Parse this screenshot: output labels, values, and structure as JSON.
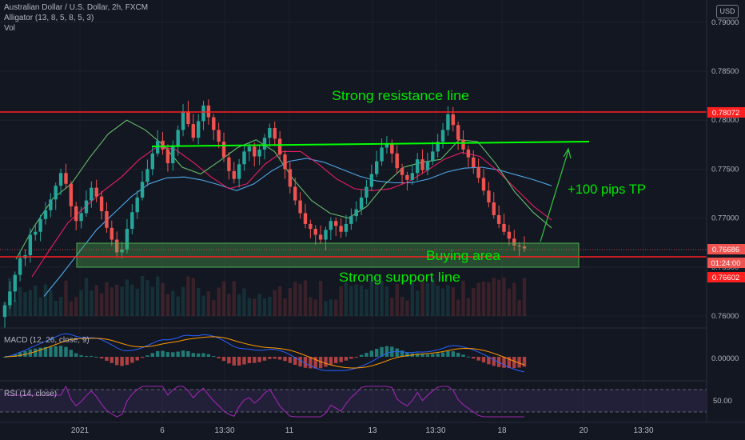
{
  "header": {
    "symbol_line": "Australian Dollar / U.S. Dollar, 2h, FXCM",
    "indicator_alligator": "Alligator (13, 8, 5, 8, 5, 3)",
    "indicator_vol": "Vol",
    "currency_button": "USD"
  },
  "colors": {
    "background": "#131722",
    "up_candle": "#26a69a",
    "down_candle": "#ef5350",
    "resistance_line": "#ff1f1f",
    "trend_line": "#00ff00",
    "annotation_text": "#00e600",
    "buy_zone_fill": "rgba(76,175,80,0.35)",
    "jaw": "#4ea7e8",
    "teeth": "#e91e63",
    "lips": "#66bb6a",
    "macd_line": "#2962ff",
    "signal_line": "#ff9800",
    "rsi_line": "#9c27b0"
  },
  "annotations": {
    "resistance_label": "Strong resistance line",
    "support_label": "Strong support line",
    "buy_zone_label": "Buying area",
    "target_label": "+100 pips TP"
  },
  "price_badges": [
    {
      "text": "0.78072",
      "color": "#ff1f1f"
    },
    {
      "text": "0.76686",
      "color": "#ef5350"
    },
    {
      "text": "01:24:00",
      "color": "#ef5350"
    },
    {
      "text": "0.76602",
      "color": "#ff1f1f"
    }
  ],
  "panes": {
    "macd_label": "MACD (12, 26, close, 9)",
    "macd_tick": "0.00000",
    "rsi_label": "RSI (14, close)",
    "rsi_tick": "50.00"
  },
  "chart_data": {
    "type": "candlestick",
    "title": "Australian Dollar / U.S. Dollar, 2h, FXCM",
    "y_ticks": [
      "0.79000",
      "0.78500",
      "0.78000",
      "0.77500",
      "0.77000",
      "0.76500",
      "0.76000"
    ],
    "ylim": [
      0.7585,
      0.7905
    ],
    "x_ticks": [
      "2021",
      "6",
      "13:30",
      "11",
      "13",
      "13:30",
      "18",
      "20",
      "13:30"
    ],
    "key_levels": {
      "resistance": 0.78072,
      "support": 0.76602,
      "last_price": 0.76686,
      "trendline": 0.7775
    },
    "close": [
      0.7611,
      0.7625,
      0.7642,
      0.7659,
      0.7662,
      0.7683,
      0.7686,
      0.7699,
      0.7708,
      0.7719,
      0.7733,
      0.7746,
      0.7735,
      0.7712,
      0.7697,
      0.7705,
      0.7718,
      0.7731,
      0.7722,
      0.7707,
      0.769,
      0.7678,
      0.7665,
      0.7668,
      0.7689,
      0.7706,
      0.7721,
      0.7737,
      0.775,
      0.7766,
      0.7779,
      0.777,
      0.7756,
      0.7773,
      0.779,
      0.7809,
      0.7796,
      0.7782,
      0.7799,
      0.7815,
      0.7803,
      0.779,
      0.7778,
      0.7762,
      0.7748,
      0.774,
      0.7755,
      0.7768,
      0.7773,
      0.7763,
      0.777,
      0.7782,
      0.7792,
      0.7781,
      0.7765,
      0.775,
      0.7732,
      0.7718,
      0.7705,
      0.7694,
      0.7689,
      0.7683,
      0.7678,
      0.7688,
      0.7697,
      0.7692,
      0.7686,
      0.7694,
      0.7702,
      0.7709,
      0.7721,
      0.7732,
      0.7745,
      0.7758,
      0.7772,
      0.7776,
      0.7766,
      0.7751,
      0.7744,
      0.7739,
      0.7746,
      0.776,
      0.7749,
      0.7758,
      0.7768,
      0.7778,
      0.779,
      0.7806,
      0.7795,
      0.778,
      0.777,
      0.7762,
      0.7752,
      0.7741,
      0.7728,
      0.7716,
      0.7703,
      0.7694,
      0.7686,
      0.7679,
      0.7672,
      0.7671,
      0.7669
    ],
    "series": [
      {
        "name": "Alligator Jaw",
        "values": [
          0.762,
          0.7642,
          0.7665,
          0.7688,
          0.7705,
          0.7722,
          0.7735,
          0.7741,
          0.7742,
          0.7739,
          0.7734,
          0.7728,
          0.7735,
          0.7748,
          0.7758,
          0.7761,
          0.7757,
          0.775,
          0.7743,
          0.7738,
          0.7736,
          0.7736,
          0.774,
          0.7747,
          0.7751,
          0.7752,
          0.7749,
          0.7744,
          0.7739,
          0.7733
        ]
      },
      {
        "name": "Alligator Teeth",
        "values": [
          0.764,
          0.7668,
          0.7695,
          0.7712,
          0.7728,
          0.7742,
          0.776,
          0.7773,
          0.777,
          0.7757,
          0.7742,
          0.773,
          0.7735,
          0.7755,
          0.7768,
          0.7768,
          0.7755,
          0.774,
          0.773,
          0.7728,
          0.773,
          0.7737,
          0.7748,
          0.776,
          0.7767,
          0.7763,
          0.7748,
          0.773,
          0.7712,
          0.7698
        ]
      },
      {
        "name": "Alligator Lips",
        "values": [
          0.7658,
          0.7692,
          0.772,
          0.7735,
          0.7762,
          0.7786,
          0.78,
          0.779,
          0.7774,
          0.7752,
          0.7745,
          0.7758,
          0.7772,
          0.778,
          0.7768,
          0.774,
          0.7718,
          0.7705,
          0.77,
          0.7712,
          0.7735,
          0.7752,
          0.7757,
          0.776,
          0.778,
          0.7778,
          0.7755,
          0.7727,
          0.7706,
          0.769
        ]
      }
    ]
  }
}
